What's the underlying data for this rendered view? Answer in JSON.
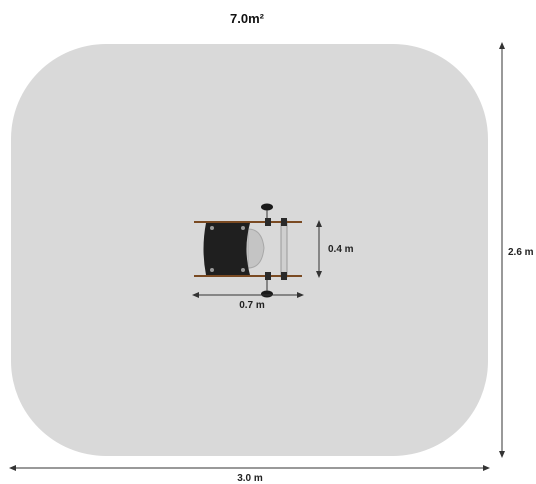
{
  "area_label": "7.0m²",
  "dimensions": {
    "total_width": "3.0 m",
    "total_depth": "2.6 m",
    "equipment_width": "0.7 m",
    "equipment_depth": "0.4 m"
  },
  "colors": {
    "safety_area": "#d9d9d9",
    "beam": "#7a4a22",
    "seat": "#1f1f1f",
    "dimension_line": "#333333",
    "footrest": "#bfbfbf"
  }
}
